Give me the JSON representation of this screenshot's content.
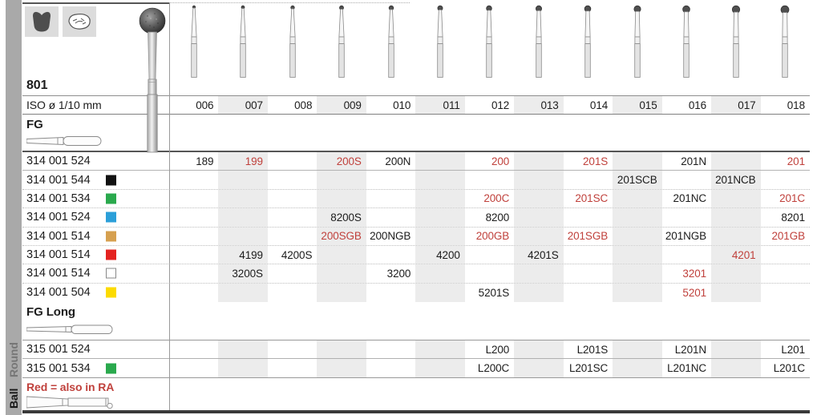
{
  "sidebar": {
    "group_label": "Round",
    "shape_label": "Ball"
  },
  "header": {
    "figure_number": "801",
    "iso_label": "ISO ø 1/10 mm",
    "icons": [
      "crown-prep-icon",
      "occlusal-surface-icon"
    ]
  },
  "columns": [
    "006",
    "007",
    "008",
    "009",
    "010",
    "011",
    "012",
    "013",
    "014",
    "015",
    "016",
    "017",
    "018"
  ],
  "note": {
    "text": "Red = also in RA"
  },
  "colors": {
    "red_text": "#c0413c",
    "stripe": "#ececec",
    "legend": {
      "black": "#111111",
      "green": "#2aa94d",
      "blue": "#2b9fd9",
      "gold": "#d6a04f",
      "red": "#e42320",
      "white": "#ffffff",
      "yellow": "#fcdb00"
    }
  },
  "sections": [
    {
      "title": "FG",
      "shank_icon": "fg-shank-icon",
      "rows": [
        {
          "code": "314 001 524",
          "grit": null,
          "cells": {
            "006": {
              "t": "189"
            },
            "007": {
              "t": "199",
              "red": true
            },
            "009": {
              "t": "200S",
              "red": true
            },
            "010": {
              "t": "200N"
            },
            "012": {
              "t": "200",
              "red": true
            },
            "014": {
              "t": "201S",
              "red": true
            },
            "016": {
              "t": "201N"
            },
            "018": {
              "t": "201",
              "red": true
            }
          }
        },
        {
          "code": "314 001 544",
          "grit": "black",
          "cells": {
            "015": {
              "t": "201SCB"
            },
            "017": {
              "t": "201NCB"
            }
          }
        },
        {
          "code": "314 001 534",
          "grit": "green",
          "cells": {
            "012": {
              "t": "200C",
              "red": true
            },
            "014": {
              "t": "201SC",
              "red": true
            },
            "016": {
              "t": "201NC"
            },
            "018": {
              "t": "201C",
              "red": true
            }
          }
        },
        {
          "code": "314 001 524",
          "grit": "blue",
          "cells": {
            "009": {
              "t": "8200S"
            },
            "012": {
              "t": "8200"
            },
            "018": {
              "t": "8201"
            }
          }
        },
        {
          "code": "314 001 514",
          "grit": "gold",
          "cells": {
            "009": {
              "t": "200SGB",
              "red": true
            },
            "010": {
              "t": "200NGB"
            },
            "012": {
              "t": "200GB",
              "red": true
            },
            "014": {
              "t": "201SGB",
              "red": true
            },
            "016": {
              "t": "201NGB"
            },
            "018": {
              "t": "201GB",
              "red": true
            }
          }
        },
        {
          "code": "314 001 514",
          "grit": "red",
          "cells": {
            "007": {
              "t": "4199"
            },
            "008": {
              "t": "4200S"
            },
            "011": {
              "t": "4200"
            },
            "013": {
              "t": "4201S"
            },
            "017": {
              "t": "4201",
              "red": true
            }
          }
        },
        {
          "code": "314 001 514",
          "grit": "white",
          "cells": {
            "007": {
              "t": "3200S"
            },
            "010": {
              "t": "3200"
            },
            "016": {
              "t": "3201",
              "red": true
            }
          }
        },
        {
          "code": "314 001 504",
          "grit": "yellow",
          "cells": {
            "012": {
              "t": "5201S"
            },
            "016": {
              "t": "5201",
              "red": true
            }
          }
        }
      ]
    },
    {
      "title": "FG Long",
      "shank_icon": "fg-long-shank-icon",
      "rows": [
        {
          "code": "315 001 524",
          "grit": null,
          "cells": {
            "012": {
              "t": "L200"
            },
            "014": {
              "t": "L201S"
            },
            "016": {
              "t": "L201N"
            },
            "018": {
              "t": "L201"
            }
          }
        },
        {
          "code": "315 001 534",
          "grit": "green",
          "cells": {
            "012": {
              "t": "L200C"
            },
            "014": {
              "t": "L201SC"
            },
            "016": {
              "t": "L201NC"
            },
            "018": {
              "t": "L201C"
            }
          }
        }
      ]
    }
  ]
}
